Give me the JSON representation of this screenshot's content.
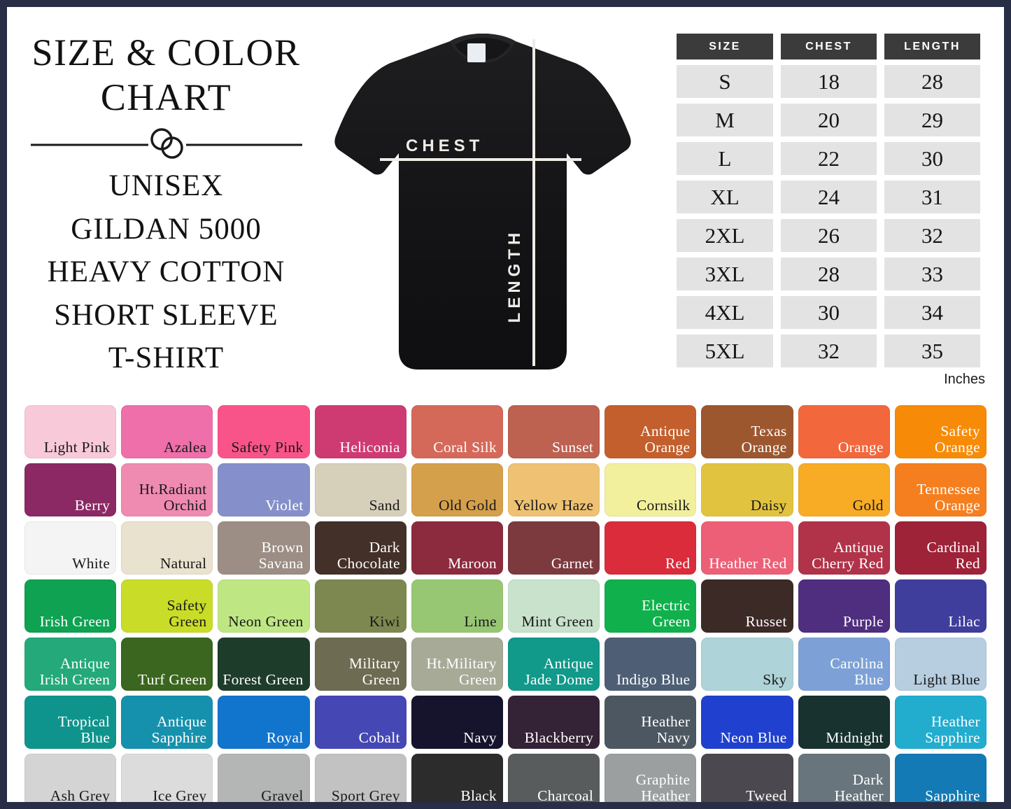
{
  "page": {
    "border_color": "#272e45",
    "background": "#ffffff",
    "table_header_bg": "#3b3b3b",
    "table_cell_bg": "#e3e3e3"
  },
  "header": {
    "title_line1": "SIZE & COLOR",
    "title_line2": "CHART",
    "subtitle_lines": [
      "UNISEX",
      "GILDAN 5000",
      "HEAVY COTTON",
      "SHORT SLEEVE",
      "T-SHIRT"
    ]
  },
  "tshirt": {
    "chest_label": "CHEST",
    "length_label": "LENGTH"
  },
  "size_table": {
    "headers": [
      "SIZE",
      "CHEST",
      "LENGTH"
    ],
    "rows": [
      {
        "size": "S",
        "chest": "18",
        "length": "28"
      },
      {
        "size": "M",
        "chest": "20",
        "length": "29"
      },
      {
        "size": "L",
        "chest": "22",
        "length": "30"
      },
      {
        "size": "XL",
        "chest": "24",
        "length": "31"
      },
      {
        "size": "2XL",
        "chest": "26",
        "length": "32"
      },
      {
        "size": "3XL",
        "chest": "28",
        "length": "33"
      },
      {
        "size": "4XL",
        "chest": "30",
        "length": "34"
      },
      {
        "size": "5XL",
        "chest": "32",
        "length": "35"
      }
    ],
    "unit_note": "Inches"
  },
  "chart_data": {
    "type": "table",
    "title": "SIZE & COLOR CHART",
    "columns": [
      "SIZE",
      "CHEST",
      "LENGTH"
    ],
    "rows": [
      [
        "S",
        18,
        28
      ],
      [
        "M",
        20,
        29
      ],
      [
        "L",
        22,
        30
      ],
      [
        "XL",
        24,
        31
      ],
      [
        "2XL",
        26,
        32
      ],
      [
        "3XL",
        28,
        33
      ],
      [
        "4XL",
        30,
        34
      ],
      [
        "5XL",
        32,
        35
      ]
    ],
    "unit": "Inches"
  },
  "color_grid": {
    "rows": 7,
    "cols": 10,
    "swatches": [
      {
        "name": "Light Pink",
        "color": "#f8c9d8",
        "text_color": "#1a1a1a"
      },
      {
        "name": "Azalea",
        "color": "#ee6fa9",
        "text_color": "#1a1a1a"
      },
      {
        "name": "Safety Pink",
        "color": "#f9548a",
        "text_color": "#1a1a1a"
      },
      {
        "name": "Heliconia",
        "color": "#ce3b72",
        "text_color": "#ffffff"
      },
      {
        "name": "Coral Silk",
        "color": "#d4695a",
        "text_color": "#ffffff"
      },
      {
        "name": "Sunset",
        "color": "#bd6150",
        "text_color": "#ffffff"
      },
      {
        "name": "Antique Orange",
        "color": "#c35f2c",
        "text_color": "#ffffff"
      },
      {
        "name": "Texas Orange",
        "color": "#9d572f",
        "text_color": "#ffffff"
      },
      {
        "name": "Orange",
        "color": "#f2673c",
        "text_color": "#ffffff"
      },
      {
        "name": "Safety Orange",
        "color": "#f78b07",
        "text_color": "#ffffff"
      },
      {
        "name": "Berry",
        "color": "#8b2964",
        "text_color": "#ffffff"
      },
      {
        "name": "Ht.Radiant Orchid",
        "color": "#ef8bb0",
        "text_color": "#1a1a1a"
      },
      {
        "name": "Violet",
        "color": "#8590ca",
        "text_color": "#ffffff"
      },
      {
        "name": "Sand",
        "color": "#d6cfba",
        "text_color": "#1a1a1a"
      },
      {
        "name": "Old Gold",
        "color": "#d5a04b",
        "text_color": "#1a1a1a"
      },
      {
        "name": "Yellow Haze",
        "color": "#eec272",
        "text_color": "#1a1a1a"
      },
      {
        "name": "Cornsilk",
        "color": "#f2ef9d",
        "text_color": "#1a1a1a"
      },
      {
        "name": "Daisy",
        "color": "#e2c33f",
        "text_color": "#1a1a1a"
      },
      {
        "name": "Gold",
        "color": "#f8ab24",
        "text_color": "#1a1a1a"
      },
      {
        "name": "Tennessee Orange",
        "color": "#f57f1f",
        "text_color": "#ffffff"
      },
      {
        "name": "White",
        "color": "#f4f4f4",
        "text_color": "#1a1a1a"
      },
      {
        "name": "Natural",
        "color": "#e9e2cf",
        "text_color": "#1a1a1a"
      },
      {
        "name": "Brown Savana",
        "color": "#9c8e85",
        "text_color": "#ffffff"
      },
      {
        "name": "Dark Chocolate",
        "color": "#433029",
        "text_color": "#ffffff"
      },
      {
        "name": "Maroon",
        "color": "#8c2b3e",
        "text_color": "#ffffff"
      },
      {
        "name": "Garnet",
        "color": "#7c3a3f",
        "text_color": "#ffffff"
      },
      {
        "name": "Red",
        "color": "#da2c3b",
        "text_color": "#ffffff"
      },
      {
        "name": "Heather Red",
        "color": "#ec5f76",
        "text_color": "#ffffff"
      },
      {
        "name": "Antique Cherry Red",
        "color": "#b13349",
        "text_color": "#ffffff"
      },
      {
        "name": "Cardinal Red",
        "color": "#9e2238",
        "text_color": "#ffffff"
      },
      {
        "name": "Irish Green",
        "color": "#0ea252",
        "text_color": "#ffffff"
      },
      {
        "name": "Safety Green",
        "color": "#c9dc28",
        "text_color": "#1a1a1a"
      },
      {
        "name": "Neon Green",
        "color": "#bee784",
        "text_color": "#1a1a1a"
      },
      {
        "name": "Kiwi",
        "color": "#7c8850",
        "text_color": "#1a1a1a"
      },
      {
        "name": "Lime",
        "color": "#98c774",
        "text_color": "#1a1a1a"
      },
      {
        "name": "Mint Green",
        "color": "#c8e2cb",
        "text_color": "#1a1a1a"
      },
      {
        "name": "Electric Green",
        "color": "#10b14c",
        "text_color": "#ffffff"
      },
      {
        "name": "Russet",
        "color": "#3c2a27",
        "text_color": "#ffffff"
      },
      {
        "name": "Purple",
        "color": "#4f2d7f",
        "text_color": "#ffffff"
      },
      {
        "name": "Lilac",
        "color": "#403e9c",
        "text_color": "#ffffff"
      },
      {
        "name": "Antique Irish Green",
        "color": "#23a97a",
        "text_color": "#ffffff"
      },
      {
        "name": "Turf Green",
        "color": "#3a661f",
        "text_color": "#ffffff"
      },
      {
        "name": "Forest Green",
        "color": "#1e3c2a",
        "text_color": "#ffffff"
      },
      {
        "name": "Military Green",
        "color": "#6d6c52",
        "text_color": "#ffffff"
      },
      {
        "name": "Ht.Military Green",
        "color": "#a6aa97",
        "text_color": "#ffffff"
      },
      {
        "name": "Antique Jade Dome",
        "color": "#11998a",
        "text_color": "#ffffff"
      },
      {
        "name": "Indigo Blue",
        "color": "#4e5f75",
        "text_color": "#ffffff"
      },
      {
        "name": "Sky",
        "color": "#aed3d8",
        "text_color": "#1a1a1a"
      },
      {
        "name": "Carolina Blue",
        "color": "#7da1d6",
        "text_color": "#ffffff"
      },
      {
        "name": "Light Blue",
        "color": "#b7cde0",
        "text_color": "#1a1a1a"
      },
      {
        "name": "Tropical Blue",
        "color": "#0f948d",
        "text_color": "#ffffff"
      },
      {
        "name": "Antique Sapphire",
        "color": "#1691ad",
        "text_color": "#ffffff"
      },
      {
        "name": "Royal",
        "color": "#1175cd",
        "text_color": "#ffffff"
      },
      {
        "name": "Cobalt",
        "color": "#4547b4",
        "text_color": "#ffffff"
      },
      {
        "name": "Navy",
        "color": "#15142c",
        "text_color": "#ffffff"
      },
      {
        "name": "Blackberry",
        "color": "#342236",
        "text_color": "#ffffff"
      },
      {
        "name": "Heather Navy",
        "color": "#4c5761",
        "text_color": "#ffffff"
      },
      {
        "name": "Neon Blue",
        "color": "#2041cf",
        "text_color": "#ffffff"
      },
      {
        "name": "Midnight",
        "color": "#17322f",
        "text_color": "#ffffff"
      },
      {
        "name": "Heather Sapphire",
        "color": "#22adcf",
        "text_color": "#ffffff"
      },
      {
        "name": "Ash Grey",
        "color": "#d4d4d4",
        "text_color": "#1a1a1a"
      },
      {
        "name": "Ice Grey",
        "color": "#dcdcdc",
        "text_color": "#1a1a1a"
      },
      {
        "name": "Gravel",
        "color": "#b4b6b5",
        "text_color": "#1a1a1a"
      },
      {
        "name": "Sport Grey",
        "color": "#c2c2c2",
        "text_color": "#1a1a1a"
      },
      {
        "name": "Black",
        "color": "#2c2c2c",
        "text_color": "#ffffff"
      },
      {
        "name": "Charcoal",
        "color": "#585c5d",
        "text_color": "#ffffff"
      },
      {
        "name": "Graphite Heather",
        "color": "#9c9fa0",
        "text_color": "#ffffff"
      },
      {
        "name": "Tweed",
        "color": "#4b494f",
        "text_color": "#ffffff"
      },
      {
        "name": "Dark Heather",
        "color": "#69757d",
        "text_color": "#ffffff"
      },
      {
        "name": "Sapphire",
        "color": "#137ab5",
        "text_color": "#ffffff"
      }
    ]
  }
}
